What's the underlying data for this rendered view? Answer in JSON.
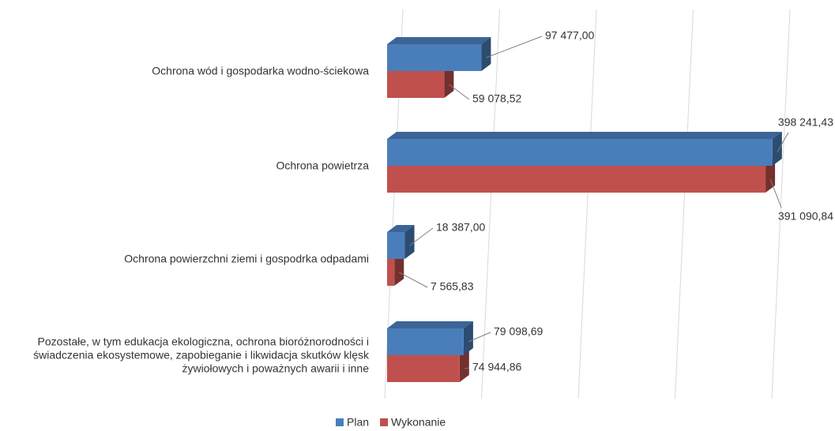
{
  "chart_data": {
    "type": "bar",
    "orientation": "horizontal",
    "style": "3d",
    "categories": [
      "Ochrona wód i gospodarka wodno-ściekowa",
      "Ochrona powietrza",
      "Ochrona powierzchni ziemi i gospodrka odpadami",
      "Pozostałe, w tym edukacja ekologiczna, ochrona bioróżnorodności i świadczenia ekosystemowe, zapobieganie i likwidacja skutków klęsk żywiołowych i poważnych awarii i inne"
    ],
    "series": [
      {
        "name": "Plan",
        "color": "#4a7ebb",
        "values": [
          97477.0,
          398241.43,
          18387.0,
          79098.69
        ],
        "value_labels": [
          "97 477,00",
          "398 241,43",
          "18 387,00",
          "79 098,69"
        ]
      },
      {
        "name": "Wykonanie",
        "color": "#c0504d",
        "values": [
          59078.52,
          391090.84,
          7565.83,
          74944.86
        ],
        "value_labels": [
          "59 078,52",
          "391 090,84",
          "7 565,83",
          "74 944,86"
        ]
      }
    ],
    "xlim": [
      0,
      400000
    ],
    "xticks": [
      0,
      100000,
      200000,
      300000,
      400000
    ],
    "grid": true,
    "legend": "bottom"
  }
}
